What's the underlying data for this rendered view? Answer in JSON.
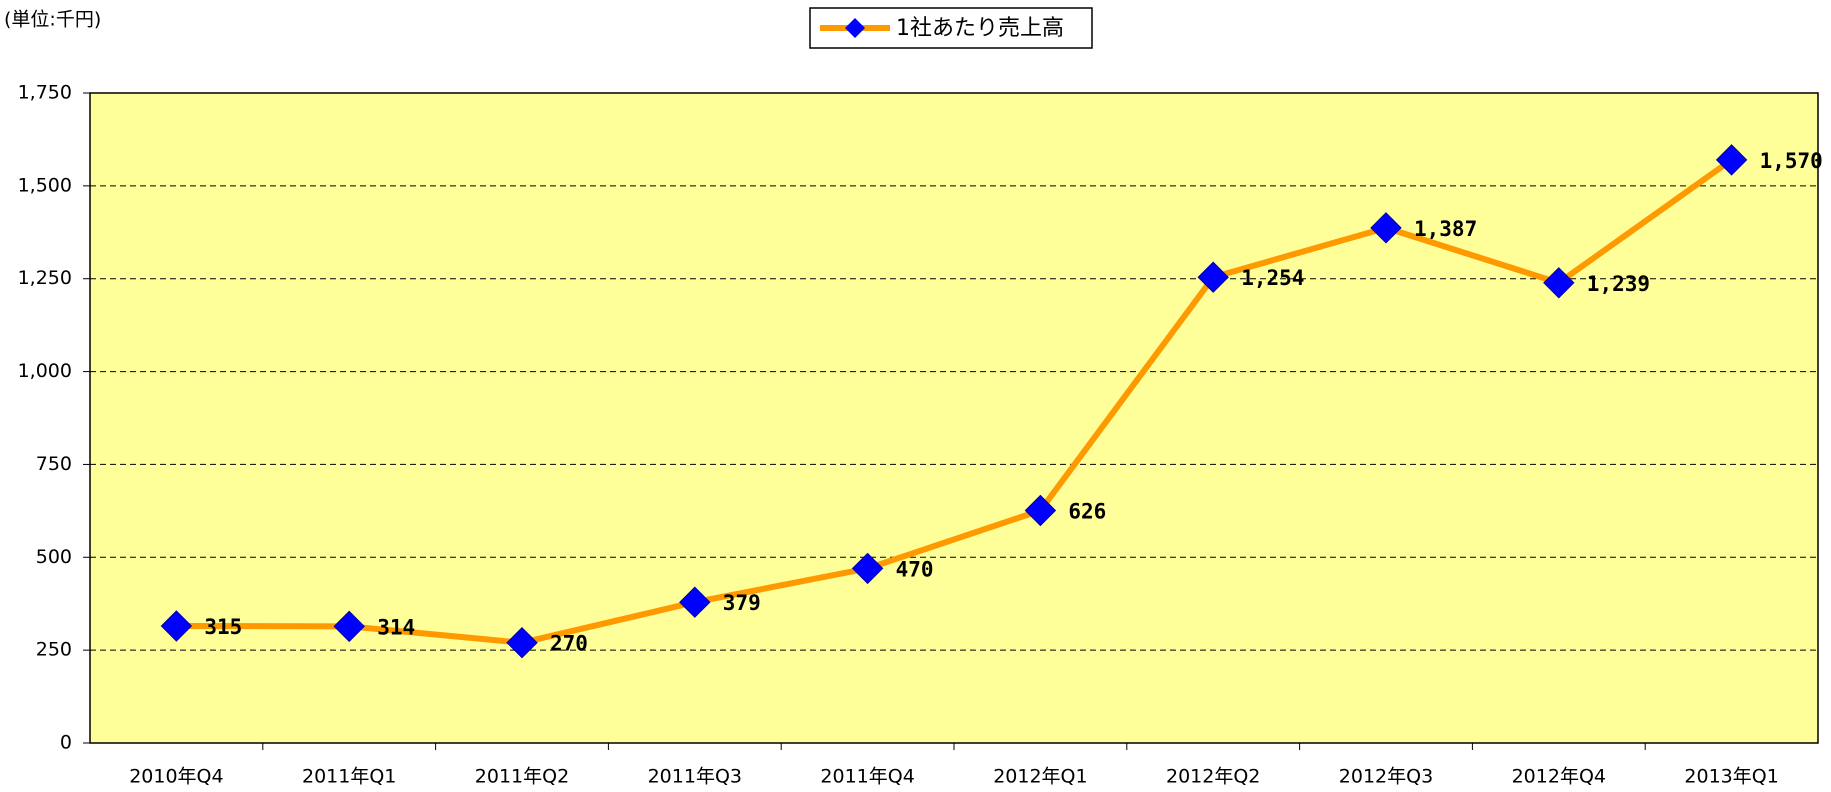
{
  "chart_data": {
    "type": "line",
    "unit_label": "(単位:千円)",
    "categories": [
      "2010年Q4",
      "2011年Q1",
      "2011年Q2",
      "2011年Q3",
      "2011年Q4",
      "2012年Q1",
      "2012年Q2",
      "2012年Q3",
      "2012年Q4",
      "2013年Q1"
    ],
    "series": [
      {
        "name": "1社あたり売上高",
        "color": "#ff9900",
        "marker_color": "#0000ff",
        "values": [
          315,
          314,
          270,
          379,
          470,
          626,
          1254,
          1387,
          1239,
          1570
        ],
        "value_labels": [
          "315",
          "314",
          "270",
          "379",
          "470",
          "626",
          "1,254",
          "1,387",
          "1,239",
          "1,570"
        ]
      }
    ],
    "ylim": [
      0,
      1750
    ],
    "yticks": [
      0,
      250,
      500,
      750,
      {
        "value": 1000,
        "label": "1,000"
      },
      {
        "value": 1250,
        "label": "1,250"
      },
      {
        "value": 1500,
        "label": "1,500"
      },
      {
        "value": 1750,
        "label": "1,750"
      }
    ],
    "grid": true,
    "plot_background": "#ffff99",
    "legend": "top"
  }
}
